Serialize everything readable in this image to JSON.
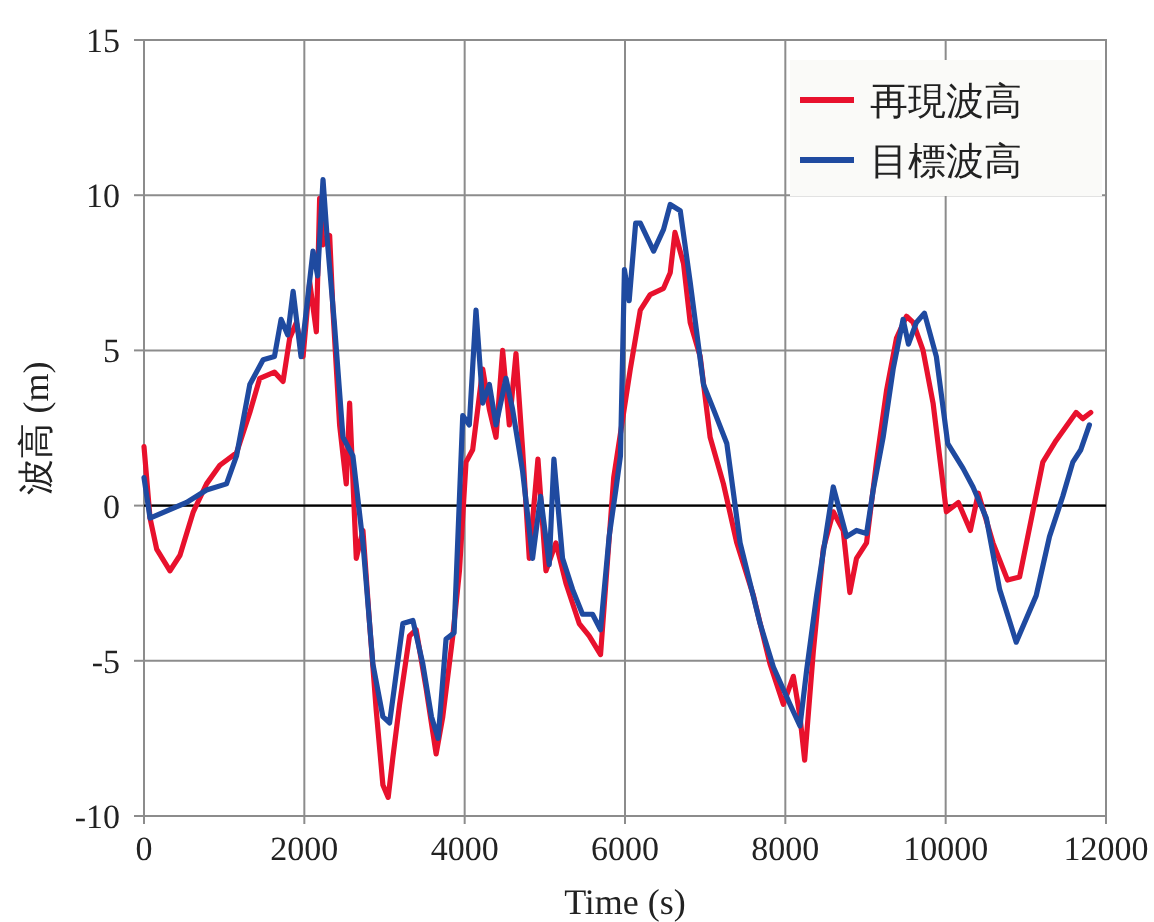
{
  "chart_data": {
    "type": "line",
    "xlabel": "Time (s)",
    "ylabel": "波高 (m)",
    "xlim": [
      0,
      12000
    ],
    "ylim": [
      -10,
      15
    ],
    "xticks": [
      0,
      2000,
      4000,
      6000,
      8000,
      10000,
      12000
    ],
    "yticks": [
      -10,
      -5,
      0,
      5,
      10,
      15
    ],
    "grid": true,
    "legend": "top right",
    "line_style": "solid",
    "ref_lines": [
      {
        "axis": "y",
        "value": 0,
        "color": "#000000"
      }
    ],
    "series": [
      {
        "name": "再現波高",
        "color": "#e8112d",
        "x": [
          0,
          75,
          158,
          324,
          449,
          615,
          780,
          946,
          1154,
          1320,
          1444,
          1627,
          1735,
          1818,
          1901,
          1984,
          2067,
          2150,
          2191,
          2233,
          2316,
          2357,
          2440,
          2523,
          2565,
          2648,
          2731,
          2814,
          2897,
          2980,
          3046,
          3105,
          3188,
          3312,
          3395,
          3520,
          3644,
          3727,
          3852,
          3935,
          4017,
          4100,
          4225,
          4308,
          4391,
          4474,
          4557,
          4640,
          4723,
          4806,
          4914,
          5014,
          5138,
          5263,
          5429,
          5553,
          5695,
          5859,
          6066,
          6191,
          6315,
          6481,
          6564,
          6623,
          6730,
          6813,
          6938,
          7062,
          7228,
          7394,
          7602,
          7809,
          7975,
          8100,
          8183,
          8241,
          8349,
          8473,
          8598,
          8722,
          8805,
          8888,
          9013,
          9137,
          9262,
          9387,
          9511,
          9594,
          9718,
          9843,
          10009,
          10158,
          10308,
          10407,
          10590,
          10772,
          10922,
          11212,
          11378,
          11627,
          11710,
          11810
        ],
        "values": [
          1.9,
          -0.4,
          -1.4,
          -2.1,
          -1.6,
          -0.2,
          0.7,
          1.3,
          1.7,
          3.0,
          4.1,
          4.3,
          4.0,
          5.4,
          5.9,
          4.8,
          7.2,
          5.6,
          9.9,
          8.4,
          8.7,
          6.3,
          2.6,
          0.7,
          3.3,
          -1.7,
          -0.8,
          -3.8,
          -6.6,
          -9.0,
          -9.4,
          -8.1,
          -6.4,
          -4.2,
          -4.0,
          -5.9,
          -8.0,
          -6.8,
          -4.2,
          -2.1,
          1.4,
          1.8,
          4.4,
          3.1,
          2.2,
          5.0,
          2.6,
          4.9,
          1.8,
          -1.7,
          1.5,
          -2.1,
          -1.2,
          -2.5,
          -3.8,
          -4.2,
          -4.8,
          0.9,
          4.4,
          6.3,
          6.8,
          7.0,
          7.5,
          8.8,
          7.8,
          5.9,
          4.8,
          2.2,
          0.7,
          -1.2,
          -2.9,
          -5.1,
          -6.4,
          -5.5,
          -6.8,
          -8.2,
          -4.7,
          -1.4,
          -0.2,
          -0.8,
          -2.8,
          -1.7,
          -1.2,
          1.4,
          3.7,
          5.4,
          6.1,
          5.9,
          5.0,
          3.3,
          -0.2,
          0.1,
          -0.8,
          0.4,
          -1.2,
          -2.4,
          -2.3,
          1.4,
          2.1,
          3.0,
          2.8,
          3.0
        ]
      },
      {
        "name": "目標波高",
        "color": "#1f4aa0",
        "x": [
          0,
          75,
          531,
          780,
          1029,
          1154,
          1320,
          1486,
          1627,
          1710,
          1793,
          1860,
          1959,
          2025,
          2108,
          2166,
          2233,
          2291,
          2374,
          2482,
          2606,
          2731,
          2855,
          2980,
          3063,
          3121,
          3229,
          3354,
          3478,
          3586,
          3669,
          3768,
          3868,
          3976,
          4058,
          4141,
          4225,
          4308,
          4391,
          4515,
          4598,
          4723,
          4847,
          4947,
          5055,
          5113,
          5221,
          5346,
          5470,
          5595,
          5695,
          5802,
          5885,
          5943,
          5993,
          6052,
          6133,
          6191,
          6357,
          6481,
          6564,
          6689,
          6813,
          6979,
          7104,
          7270,
          7436,
          7685,
          7851,
          8058,
          8183,
          8266,
          8390,
          8515,
          8598,
          8764,
          8888,
          9013,
          9096,
          9220,
          9345,
          9469,
          9536,
          9635,
          9735,
          9884,
          10026,
          10217,
          10341,
          10507,
          10673,
          10880,
          11129,
          11295,
          11461,
          11586,
          11686,
          11793
        ],
        "values": [
          0.9,
          -0.4,
          0.1,
          0.5,
          0.7,
          1.6,
          3.9,
          4.7,
          4.8,
          6.0,
          5.5,
          6.9,
          4.8,
          6.3,
          8.2,
          7.4,
          10.5,
          8.4,
          5.9,
          2.2,
          1.6,
          -1.2,
          -5.1,
          -6.8,
          -7.0,
          -5.9,
          -3.8,
          -3.7,
          -5.1,
          -6.8,
          -7.5,
          -4.3,
          -4.1,
          2.9,
          2.6,
          6.3,
          3.3,
          3.9,
          2.6,
          4.1,
          3.1,
          1.1,
          -1.7,
          0.3,
          -1.9,
          1.5,
          -1.7,
          -2.7,
          -3.5,
          -3.5,
          -4.0,
          -1.0,
          0.5,
          1.6,
          7.6,
          6.6,
          9.1,
          9.1,
          8.2,
          8.9,
          9.7,
          9.5,
          7.2,
          3.9,
          3.1,
          2.0,
          -1.2,
          -3.8,
          -5.2,
          -6.4,
          -7.1,
          -5.3,
          -2.9,
          -0.8,
          0.6,
          -1.0,
          -0.8,
          -0.9,
          0.5,
          2.2,
          4.4,
          6.0,
          5.2,
          5.9,
          6.2,
          4.8,
          2.0,
          1.2,
          0.6,
          -0.4,
          -2.7,
          -4.4,
          -2.9,
          -1.0,
          0.3,
          1.4,
          1.8,
          2.6
        ]
      }
    ]
  }
}
